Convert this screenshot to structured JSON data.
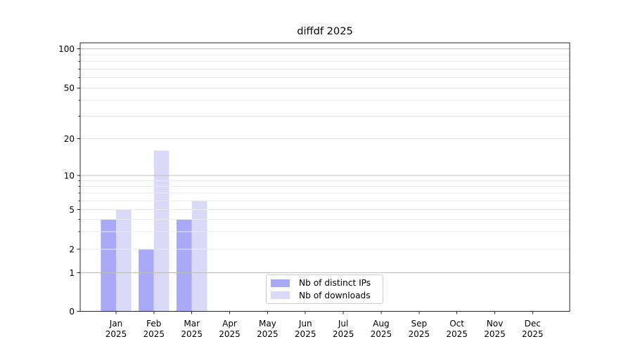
{
  "chart_data": {
    "type": "bar",
    "title": "diffdf 2025",
    "categories": [
      "Jan",
      "Feb",
      "Mar",
      "Apr",
      "May",
      "Jun",
      "Jul",
      "Aug",
      "Sep",
      "Oct",
      "Nov",
      "Dec"
    ],
    "category_year": "2025",
    "series": [
      {
        "name": "Nb of distinct IPs",
        "color": "#a9a9f7",
        "values": [
          4,
          2,
          4,
          0,
          0,
          0,
          0,
          0,
          0,
          0,
          0,
          0
        ]
      },
      {
        "name": "Nb of downloads",
        "color": "#dadaf8",
        "values": [
          5,
          16,
          6,
          0,
          0,
          0,
          0,
          0,
          0,
          0,
          0,
          0
        ]
      }
    ],
    "yaxis": {
      "scale": "symlog",
      "ticks": [
        0,
        1,
        2,
        5,
        10,
        20,
        50,
        100
      ],
      "minor_ticks": [
        3,
        4,
        6,
        7,
        8,
        9,
        30,
        40,
        60,
        70,
        80,
        90
      ],
      "range": [
        0,
        112
      ]
    },
    "xlabel": "",
    "ylabel": "",
    "grid": {
      "on": true,
      "major_color": "#bdbdbd",
      "minor_color": "#ebebeb"
    },
    "legend": {
      "position": "lower center"
    },
    "colors": {
      "spine": "#262626",
      "tick_label": "#000000",
      "background": "#ffffff"
    }
  }
}
